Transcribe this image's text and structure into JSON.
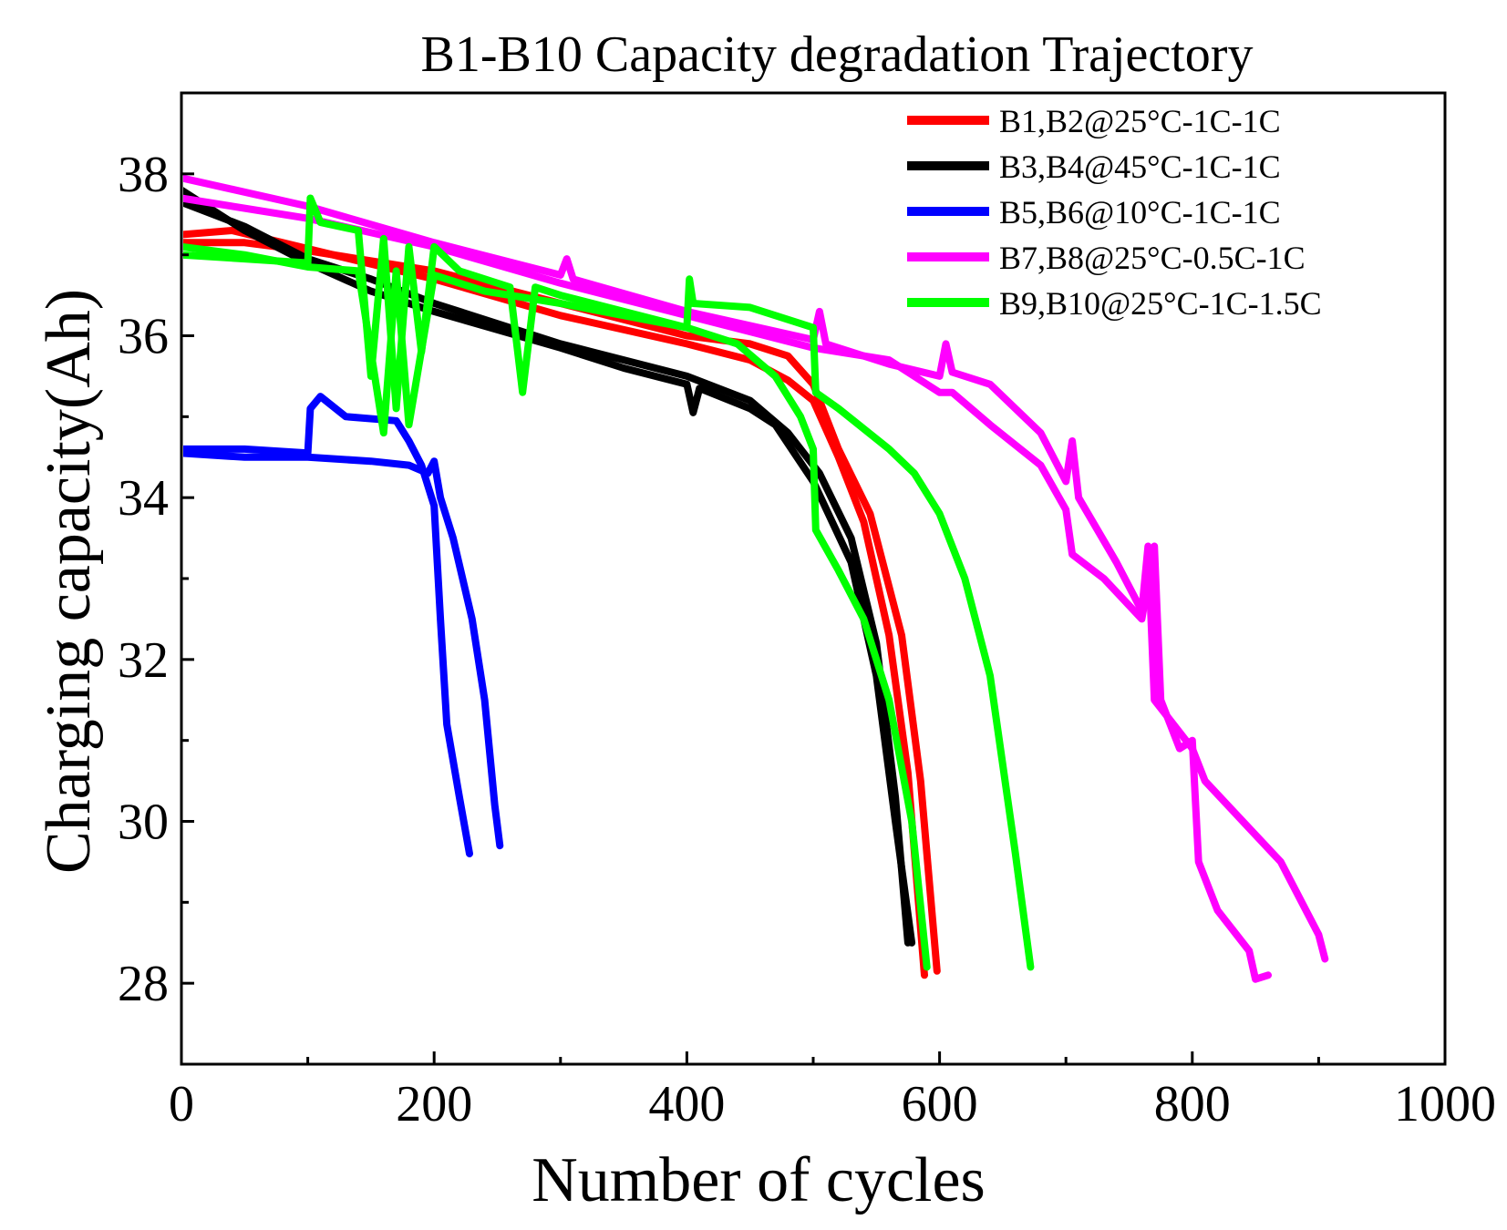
{
  "chart_data": {
    "type": "line",
    "title": "B1-B10 Capacity degradation Trajectory",
    "xlabel": "Number of cycles",
    "ylabel": "Charging capacity(Ah)",
    "xlim": [
      0,
      1000
    ],
    "ylim": [
      27,
      39
    ],
    "xticks": [
      0,
      200,
      400,
      600,
      800,
      1000
    ],
    "yticks": [
      28,
      30,
      32,
      34,
      36,
      38
    ],
    "legend_position": "top-right",
    "groups": [
      {
        "name": "B1,B2@25°C-1C-1C",
        "color": "#ff0000",
        "curves": [
          [
            [
              0,
              37.25
            ],
            [
              40,
              37.3
            ],
            [
              80,
              37.15
            ],
            [
              120,
              37.0
            ],
            [
              200,
              36.7
            ],
            [
              300,
              36.25
            ],
            [
              400,
              35.9
            ],
            [
              450,
              35.7
            ],
            [
              480,
              35.45
            ],
            [
              500,
              35.2
            ],
            [
              520,
              34.5
            ],
            [
              540,
              33.7
            ],
            [
              560,
              32.3
            ],
            [
              575,
              30.6
            ],
            [
              588,
              28.1
            ]
          ],
          [
            [
              0,
              37.15
            ],
            [
              50,
              37.15
            ],
            [
              100,
              37.05
            ],
            [
              200,
              36.8
            ],
            [
              300,
              36.4
            ],
            [
              400,
              36.0
            ],
            [
              450,
              35.9
            ],
            [
              480,
              35.75
            ],
            [
              500,
              35.4
            ],
            [
              520,
              34.6
            ],
            [
              545,
              33.8
            ],
            [
              570,
              32.3
            ],
            [
              585,
              30.5
            ],
            [
              598,
              28.15
            ]
          ]
        ]
      },
      {
        "name": "B3,B4@45°C-1C-1C",
        "color": "#000000",
        "curves": [
          [
            [
              0,
              37.8
            ],
            [
              50,
              37.3
            ],
            [
              100,
              36.9
            ],
            [
              150,
              36.55
            ],
            [
              200,
              36.3
            ],
            [
              300,
              35.85
            ],
            [
              350,
              35.6
            ],
            [
              400,
              35.4
            ],
            [
              405,
              35.05
            ],
            [
              410,
              35.35
            ],
            [
              450,
              35.1
            ],
            [
              470,
              34.9
            ],
            [
              500,
              34.2
            ],
            [
              530,
              33.2
            ],
            [
              550,
              31.8
            ],
            [
              565,
              30.0
            ],
            [
              578,
              28.5
            ]
          ],
          [
            [
              0,
              37.65
            ],
            [
              50,
              37.35
            ],
            [
              100,
              36.95
            ],
            [
              150,
              36.7
            ],
            [
              200,
              36.4
            ],
            [
              300,
              35.9
            ],
            [
              350,
              35.7
            ],
            [
              400,
              35.5
            ],
            [
              450,
              35.2
            ],
            [
              480,
              34.8
            ],
            [
              505,
              34.3
            ],
            [
              530,
              33.5
            ],
            [
              550,
              32.2
            ],
            [
              565,
              30.3
            ],
            [
              575,
              28.5
            ]
          ]
        ]
      },
      {
        "name": "B5,B6@10°C-1C-1C",
        "color": "#0000ff",
        "curves": [
          [
            [
              0,
              34.6
            ],
            [
              50,
              34.6
            ],
            [
              100,
              34.55
            ],
            [
              102,
              35.1
            ],
            [
              110,
              35.25
            ],
            [
              130,
              35.0
            ],
            [
              170,
              34.95
            ],
            [
              180,
              34.7
            ],
            [
              190,
              34.4
            ],
            [
              198,
              34.0
            ],
            [
              200,
              33.9
            ],
            [
              205,
              32.5
            ],
            [
              210,
              31.2
            ],
            [
              220,
              30.3
            ],
            [
              228,
              29.6
            ]
          ],
          [
            [
              0,
              34.55
            ],
            [
              50,
              34.5
            ],
            [
              100,
              34.5
            ],
            [
              150,
              34.45
            ],
            [
              180,
              34.4
            ],
            [
              195,
              34.3
            ],
            [
              200,
              34.45
            ],
            [
              205,
              34.0
            ],
            [
              215,
              33.5
            ],
            [
              230,
              32.5
            ],
            [
              240,
              31.5
            ],
            [
              248,
              30.2
            ],
            [
              252,
              29.7
            ]
          ]
        ]
      },
      {
        "name": "B7,B8@25°C-0.5C-1C",
        "color": "#ff00ff",
        "curves": [
          [
            [
              0,
              37.95
            ],
            [
              100,
              37.6
            ],
            [
              200,
              37.15
            ],
            [
              300,
              36.75
            ],
            [
              305,
              36.95
            ],
            [
              310,
              36.7
            ],
            [
              400,
              36.3
            ],
            [
              500,
              35.95
            ],
            [
              505,
              36.3
            ],
            [
              510,
              35.9
            ],
            [
              560,
              35.65
            ],
            [
              600,
              35.5
            ],
            [
              605,
              35.9
            ],
            [
              610,
              35.55
            ],
            [
              640,
              35.4
            ],
            [
              680,
              34.8
            ],
            [
              700,
              34.2
            ],
            [
              705,
              34.7
            ],
            [
              710,
              34.0
            ],
            [
              740,
              33.2
            ],
            [
              760,
              32.6
            ],
            [
              765,
              33.4
            ],
            [
              770,
              31.5
            ],
            [
              780,
              31.3
            ],
            [
              800,
              30.9
            ],
            [
              810,
              30.5
            ],
            [
              840,
              30.0
            ],
            [
              870,
              29.5
            ],
            [
              900,
              28.6
            ],
            [
              905,
              28.3
            ]
          ],
          [
            [
              0,
              37.7
            ],
            [
              100,
              37.45
            ],
            [
              200,
              37.1
            ],
            [
              300,
              36.65
            ],
            [
              400,
              36.25
            ],
            [
              500,
              35.85
            ],
            [
              560,
              35.7
            ],
            [
              600,
              35.3
            ],
            [
              610,
              35.3
            ],
            [
              640,
              34.9
            ],
            [
              680,
              34.4
            ],
            [
              700,
              33.85
            ],
            [
              705,
              33.3
            ],
            [
              730,
              33.0
            ],
            [
              760,
              32.5
            ],
            [
              770,
              33.4
            ],
            [
              775,
              31.5
            ],
            [
              790,
              30.9
            ],
            [
              800,
              31.0
            ],
            [
              805,
              29.5
            ],
            [
              820,
              28.9
            ],
            [
              845,
              28.4
            ],
            [
              850,
              28.05
            ],
            [
              860,
              28.1
            ]
          ]
        ]
      },
      {
        "name": "B9,B10@25°C-1C-1.5C",
        "color": "#00ff00",
        "curves": [
          [
            [
              0,
              37.0
            ],
            [
              50,
              36.95
            ],
            [
              100,
              36.9
            ],
            [
              102,
              37.7
            ],
            [
              110,
              37.4
            ],
            [
              140,
              37.3
            ],
            [
              150,
              35.5
            ],
            [
              160,
              37.2
            ],
            [
              170,
              35.1
            ],
            [
              180,
              37.1
            ],
            [
              190,
              35.8
            ],
            [
              200,
              37.1
            ],
            [
              220,
              36.8
            ],
            [
              260,
              36.6
            ],
            [
              270,
              35.3
            ],
            [
              280,
              36.6
            ],
            [
              300,
              36.5
            ],
            [
              400,
              36.1
            ],
            [
              402,
              36.7
            ],
            [
              405,
              36.4
            ],
            [
              450,
              36.35
            ],
            [
              500,
              36.1
            ],
            [
              502,
              35.3
            ],
            [
              520,
              35.1
            ],
            [
              560,
              34.6
            ],
            [
              580,
              34.3
            ],
            [
              600,
              33.8
            ],
            [
              620,
              33.0
            ],
            [
              640,
              31.8
            ],
            [
              660,
              29.6
            ],
            [
              672,
              28.2
            ]
          ],
          [
            [
              0,
              37.1
            ],
            [
              50,
              37.0
            ],
            [
              100,
              36.85
            ],
            [
              140,
              36.8
            ],
            [
              160,
              34.8
            ],
            [
              170,
              36.8
            ],
            [
              180,
              34.9
            ],
            [
              200,
              36.75
            ],
            [
              240,
              36.55
            ],
            [
              300,
              36.4
            ],
            [
              400,
              36.1
            ],
            [
              440,
              35.9
            ],
            [
              470,
              35.5
            ],
            [
              490,
              35.0
            ],
            [
              500,
              34.6
            ],
            [
              502,
              33.6
            ],
            [
              520,
              33.1
            ],
            [
              540,
              32.5
            ],
            [
              560,
              31.5
            ],
            [
              578,
              30.0
            ],
            [
              590,
              28.2
            ]
          ]
        ]
      }
    ]
  }
}
